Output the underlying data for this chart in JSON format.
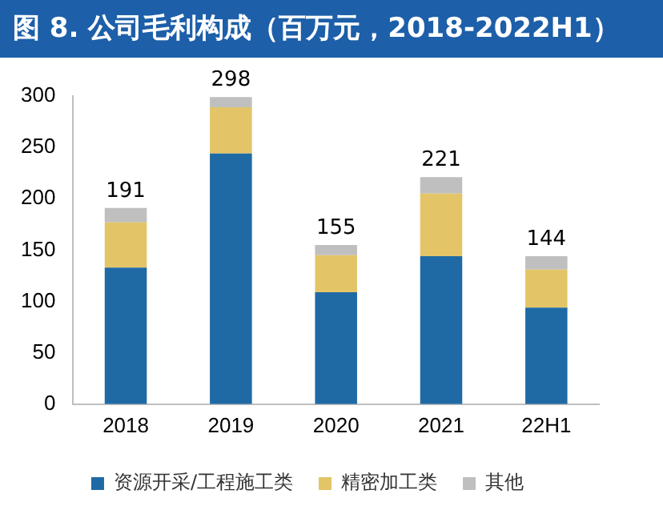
{
  "chart_data": {
    "type": "bar",
    "title": "图 8. 公司毛利构成（百万元，2018-2022H1）",
    "categories": [
      "2018",
      "2019",
      "2020",
      "2021",
      "22H1"
    ],
    "stacked": true,
    "series": [
      {
        "name": "资源开采/工程施工类",
        "color": "#1f6aa5",
        "values": [
          133,
          244,
          109,
          144,
          94
        ]
      },
      {
        "name": "精密加工类",
        "color": "#e3c567",
        "values": [
          44,
          45,
          36,
          61,
          37
        ]
      },
      {
        "name": "其他",
        "color": "#bfbfbf",
        "values": [
          14,
          10,
          10,
          16,
          13
        ]
      }
    ],
    "totals": [
      "191",
      "298",
      "155",
      "221",
      "144"
    ],
    "ylim": [
      0,
      300
    ],
    "yticks": [
      0,
      50,
      100,
      150,
      200,
      250,
      300
    ],
    "grid": false,
    "legend": "bottom"
  }
}
